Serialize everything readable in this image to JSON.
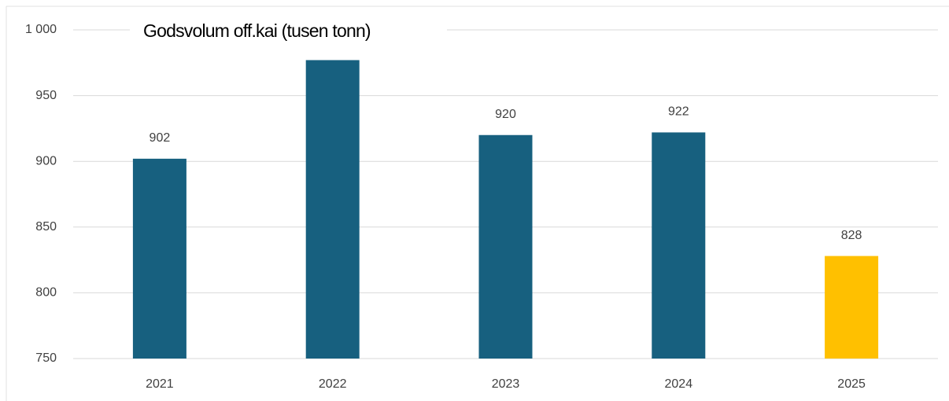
{
  "chart_data": {
    "type": "bar",
    "title": "Godsvolum off.kai (tusen tonn)",
    "categories": [
      "2021",
      "2022",
      "2023",
      "2024",
      "2025"
    ],
    "values": [
      902,
      977,
      920,
      922,
      828
    ],
    "colors": [
      "#17607f",
      "#17607f",
      "#17607f",
      "#17607f",
      "#ffc000"
    ],
    "ylim": [
      750,
      1000
    ],
    "yticks": [
      750,
      800,
      850,
      900,
      950,
      {
        "value": 1000,
        "label": "1 000"
      }
    ],
    "grid": true
  }
}
